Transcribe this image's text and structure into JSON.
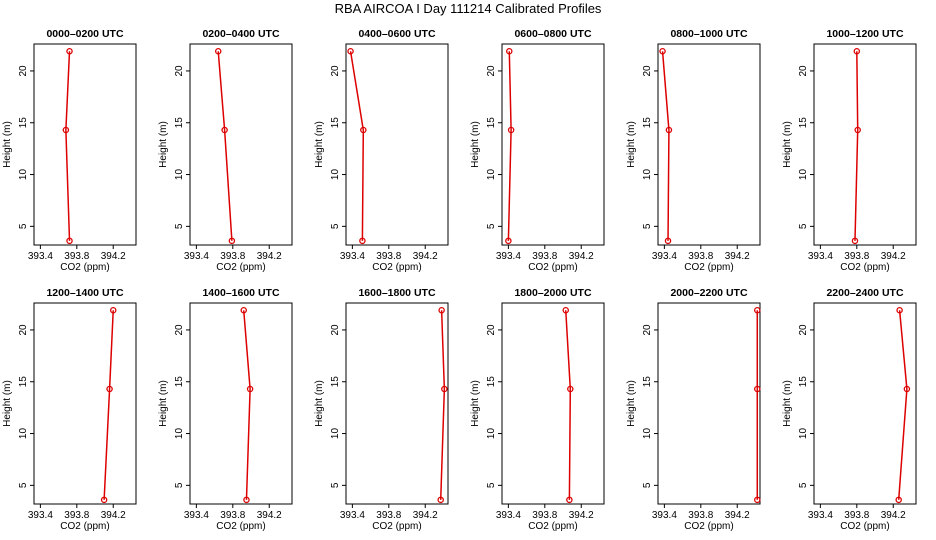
{
  "title": "RBA AIRCOA I  Day 111214  Calibrated Profiles",
  "chart_data": [
    {
      "type": "line",
      "title": "0000–0200 UTC",
      "xlabel": "CO2 (ppm)",
      "ylabel": "Height (m)",
      "x": [
        393.72,
        393.68,
        393.72
      ],
      "values": [
        21.9,
        14.3,
        3.6
      ],
      "color": "#dd0000",
      "xlim": [
        393.33,
        394.45
      ],
      "ylim": [
        3.2,
        22.6
      ],
      "xticks": [
        393.4,
        393.8,
        394.2
      ],
      "yticks": [
        5,
        10,
        15,
        20
      ]
    },
    {
      "type": "line",
      "title": "0200–0400 UTC",
      "xlabel": "CO2 (ppm)",
      "ylabel": "Height (m)",
      "x": [
        393.64,
        393.71,
        393.79
      ],
      "values": [
        21.9,
        14.3,
        3.6
      ],
      "color": "#dd0000",
      "xlim": [
        393.33,
        394.45
      ],
      "ylim": [
        3.2,
        22.6
      ],
      "xticks": [
        393.4,
        393.8,
        394.2
      ],
      "yticks": [
        5,
        10,
        15,
        20
      ]
    },
    {
      "type": "line",
      "title": "0400–0600 UTC",
      "xlabel": "CO2 (ppm)",
      "ylabel": "Height (m)",
      "x": [
        393.38,
        393.52,
        393.51
      ],
      "values": [
        21.9,
        14.3,
        3.6
      ],
      "color": "#dd0000",
      "xlim": [
        393.33,
        394.45
      ],
      "ylim": [
        3.2,
        22.6
      ],
      "xticks": [
        393.4,
        393.8,
        394.2
      ],
      "yticks": [
        5,
        10,
        15,
        20
      ]
    },
    {
      "type": "line",
      "title": "0600–0800 UTC",
      "xlabel": "CO2 (ppm)",
      "ylabel": "Height (m)",
      "x": [
        393.41,
        393.43,
        393.4
      ],
      "values": [
        21.9,
        14.3,
        3.6
      ],
      "color": "#dd0000",
      "xlim": [
        393.33,
        394.45
      ],
      "ylim": [
        3.2,
        22.6
      ],
      "xticks": [
        393.4,
        393.8,
        394.2
      ],
      "yticks": [
        5,
        10,
        15,
        20
      ]
    },
    {
      "type": "line",
      "title": "0800–1000 UTC",
      "xlabel": "CO2 (ppm)",
      "ylabel": "Height (m)",
      "x": [
        393.38,
        393.45,
        393.44
      ],
      "values": [
        21.9,
        14.3,
        3.6
      ],
      "color": "#dd0000",
      "xlim": [
        393.33,
        394.45
      ],
      "ylim": [
        3.2,
        22.6
      ],
      "xticks": [
        393.4,
        393.8,
        394.2
      ],
      "yticks": [
        5,
        10,
        15,
        20
      ]
    },
    {
      "type": "line",
      "title": "1000–1200 UTC",
      "xlabel": "CO2 (ppm)",
      "ylabel": "Height (m)",
      "x": [
        393.8,
        393.81,
        393.78
      ],
      "values": [
        21.9,
        14.3,
        3.6
      ],
      "color": "#dd0000",
      "xlim": [
        393.33,
        394.45
      ],
      "ylim": [
        3.2,
        22.6
      ],
      "xticks": [
        393.4,
        393.8,
        394.2
      ],
      "yticks": [
        5,
        10,
        15,
        20
      ]
    },
    {
      "type": "line",
      "title": "1200–1400 UTC",
      "xlabel": "CO2 (ppm)",
      "ylabel": "Height (m)",
      "x": [
        394.2,
        394.16,
        394.1
      ],
      "values": [
        21.9,
        14.3,
        3.6
      ],
      "color": "#dd0000",
      "xlim": [
        393.33,
        394.45
      ],
      "ylim": [
        3.2,
        22.6
      ],
      "xticks": [
        393.4,
        393.8,
        394.2
      ],
      "yticks": [
        5,
        10,
        15,
        20
      ]
    },
    {
      "type": "line",
      "title": "1400–1600 UTC",
      "xlabel": "CO2 (ppm)",
      "ylabel": "Height (m)",
      "x": [
        393.92,
        393.99,
        393.95
      ],
      "values": [
        21.9,
        14.3,
        3.6
      ],
      "color": "#dd0000",
      "xlim": [
        393.33,
        394.45
      ],
      "ylim": [
        3.2,
        22.6
      ],
      "xticks": [
        393.4,
        393.8,
        394.2
      ],
      "yticks": [
        5,
        10,
        15,
        20
      ]
    },
    {
      "type": "line",
      "title": "1600–1800 UTC",
      "xlabel": "CO2 (ppm)",
      "ylabel": "Height (m)",
      "x": [
        394.38,
        394.41,
        394.37
      ],
      "values": [
        21.9,
        14.3,
        3.6
      ],
      "color": "#dd0000",
      "xlim": [
        393.33,
        394.45
      ],
      "ylim": [
        3.2,
        22.6
      ],
      "xticks": [
        393.4,
        393.8,
        394.2
      ],
      "yticks": [
        5,
        10,
        15,
        20
      ]
    },
    {
      "type": "line",
      "title": "1800–2000 UTC",
      "xlabel": "CO2 (ppm)",
      "ylabel": "Height (m)",
      "x": [
        394.03,
        394.08,
        394.07
      ],
      "values": [
        21.9,
        14.3,
        3.6
      ],
      "color": "#dd0000",
      "xlim": [
        393.33,
        394.45
      ],
      "ylim": [
        3.2,
        22.6
      ],
      "xticks": [
        393.4,
        393.8,
        394.2
      ],
      "yticks": [
        5,
        10,
        15,
        20
      ]
    },
    {
      "type": "line",
      "title": "2000–2200 UTC",
      "xlabel": "CO2 (ppm)",
      "ylabel": "Height (m)",
      "x": [
        394.42,
        394.42,
        394.42
      ],
      "values": [
        21.9,
        14.3,
        3.6
      ],
      "color": "#dd0000",
      "xlim": [
        393.33,
        394.45
      ],
      "ylim": [
        3.2,
        22.6
      ],
      "xticks": [
        393.4,
        393.8,
        394.2
      ],
      "yticks": [
        5,
        10,
        15,
        20
      ]
    },
    {
      "type": "line",
      "title": "2200–2400 UTC",
      "xlabel": "CO2 (ppm)",
      "ylabel": "Height (m)",
      "x": [
        394.27,
        394.35,
        394.26
      ],
      "values": [
        21.9,
        14.3,
        3.6
      ],
      "color": "#dd0000",
      "xlim": [
        393.33,
        394.45
      ],
      "ylim": [
        3.2,
        22.6
      ],
      "xticks": [
        393.4,
        393.8,
        394.2
      ],
      "yticks": [
        5,
        10,
        15,
        20
      ]
    }
  ]
}
